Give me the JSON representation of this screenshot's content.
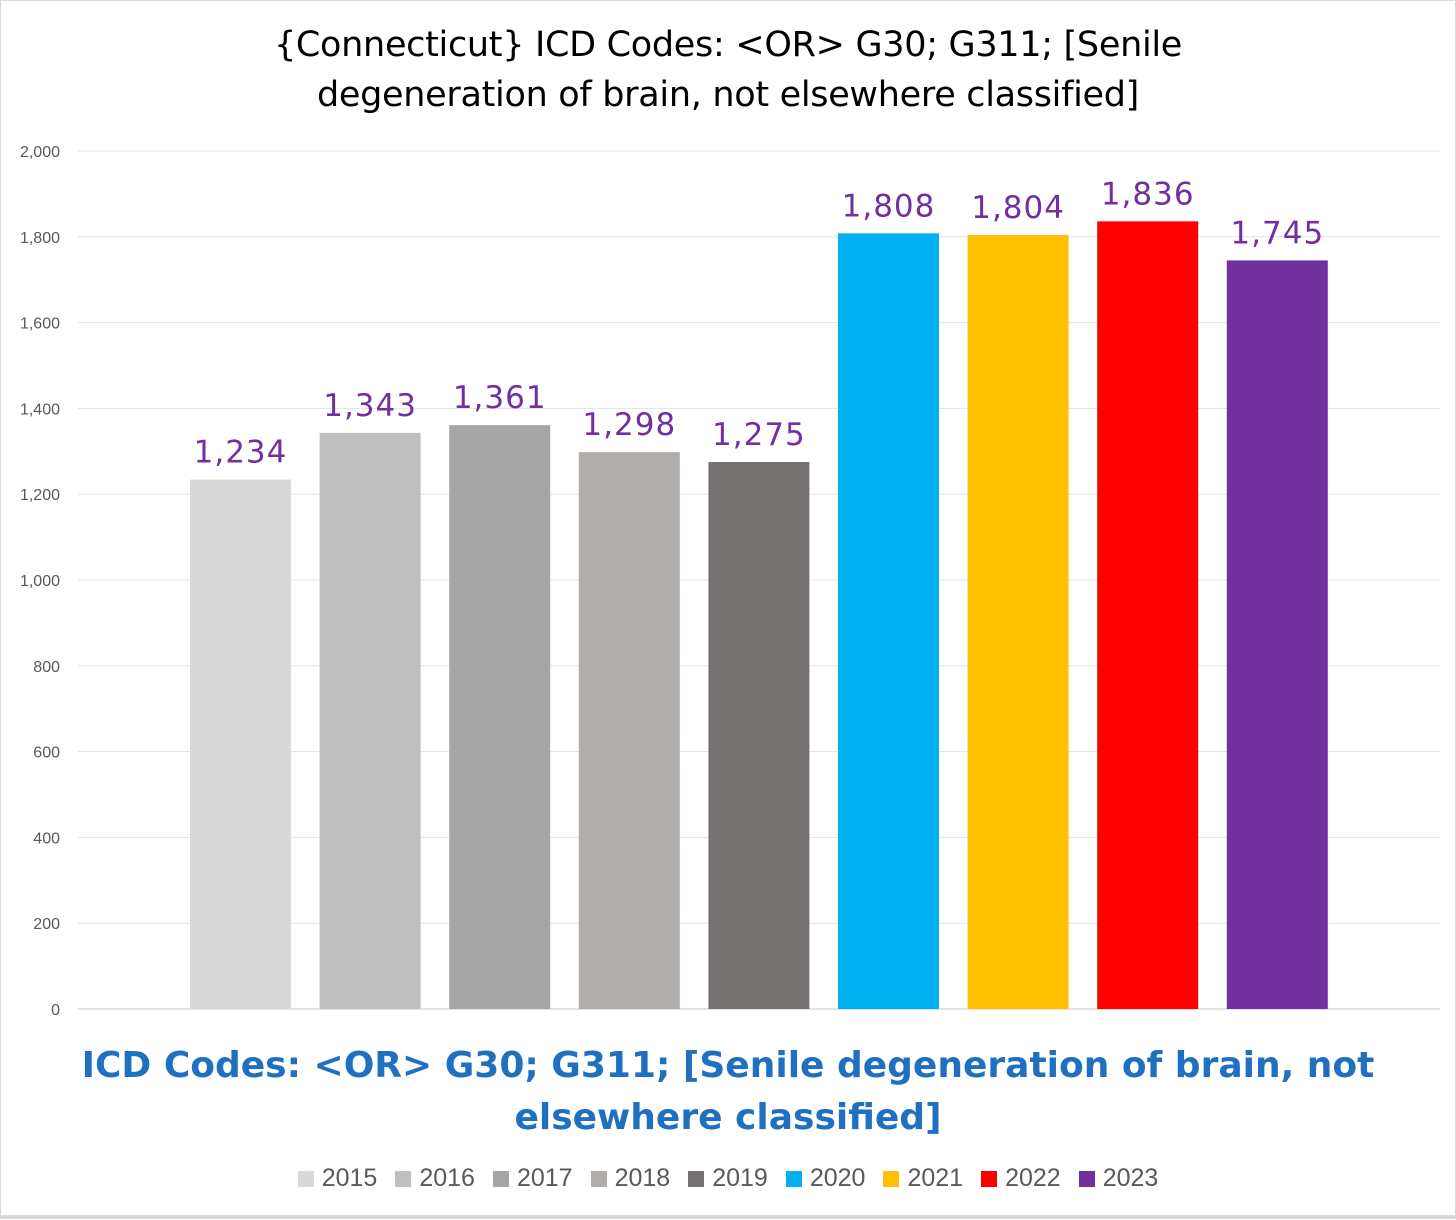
{
  "chart_data": {
    "type": "bar",
    "title_lines": [
      "{Connecticut}  ICD Codes: <OR>  G30; G311;  [Senile",
      "degeneration of brain, not elsewhere classified]"
    ],
    "xlabel_lines": [
      "ICD Codes: <OR>  G30; G311;  [Senile degeneration of brain, not",
      "elsewhere classified]"
    ],
    "ylabel": "",
    "ylim": [
      0,
      2000
    ],
    "yticks": [
      0,
      200,
      400,
      600,
      800,
      1000,
      1200,
      1400,
      1600,
      1800,
      2000
    ],
    "ytick_labels": [
      "0",
      "200",
      "400",
      "600",
      "800",
      "1,000",
      "1,200",
      "1,400",
      "1,600",
      "1,800",
      "2,000"
    ],
    "grid": true,
    "legend_position": "bottom",
    "series": [
      {
        "name": "2015",
        "value": 1234,
        "label": "1,234",
        "color": "#d9d9d9"
      },
      {
        "name": "2016",
        "value": 1343,
        "label": "1,343",
        "color": "#bfbfbf"
      },
      {
        "name": "2017",
        "value": 1361,
        "label": "1,361",
        "color": "#a6a6a6"
      },
      {
        "name": "2018",
        "value": 1298,
        "label": "1,298",
        "color": "#b0adab"
      },
      {
        "name": "2019",
        "value": 1275,
        "label": "1,275",
        "color": "#767171"
      },
      {
        "name": "2020",
        "value": 1808,
        "label": "1,808",
        "color": "#00b0f0"
      },
      {
        "name": "2021",
        "value": 1804,
        "label": "1,804",
        "color": "#ffc000"
      },
      {
        "name": "2022",
        "value": 1836,
        "label": "1,836",
        "color": "#ff0000"
      },
      {
        "name": "2023",
        "value": 1745,
        "label": "1,745",
        "color": "#7030a0"
      }
    ],
    "data_label_color": "#7030a0"
  }
}
